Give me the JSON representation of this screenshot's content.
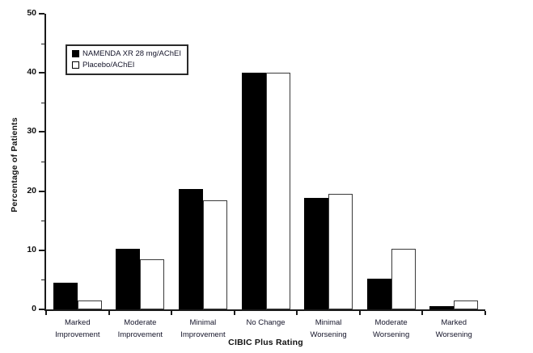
{
  "chart_data": {
    "type": "bar",
    "title": "",
    "xlabel": "CIBIC Plus Rating",
    "ylabel": "Percentage of Patients",
    "ylim": [
      0,
      50
    ],
    "yticks": [
      0,
      10,
      20,
      30,
      40,
      50
    ],
    "ytick_minor": [
      5,
      15,
      25,
      35,
      45
    ],
    "grid": false,
    "legend_position": "top-left",
    "categories": [
      "Marked Improvement",
      "Moderate Improvement",
      "Minimal Improvement",
      "No Change",
      "Minimal Worsening",
      "Moderate Worsening",
      "Marked Worsening"
    ],
    "series": [
      {
        "name": "NAMENDA XR 28 mg/AChEI",
        "fill": "#000000",
        "outline": "#000000",
        "values": [
          4.5,
          10.3,
          20.3,
          40.0,
          18.9,
          5.2,
          0.5
        ]
      },
      {
        "name": "Placebo/AChEI",
        "fill": "#ffffff",
        "outline": "#3a3a3a",
        "values": [
          1.5,
          8.5,
          18.4,
          40.0,
          19.5,
          10.3,
          1.5
        ]
      }
    ]
  },
  "colors": {
    "background": "#ffffff",
    "axis": "#1a1a1a",
    "bar_filled": "#000000",
    "bar_open_border": "#3a3a3a"
  }
}
